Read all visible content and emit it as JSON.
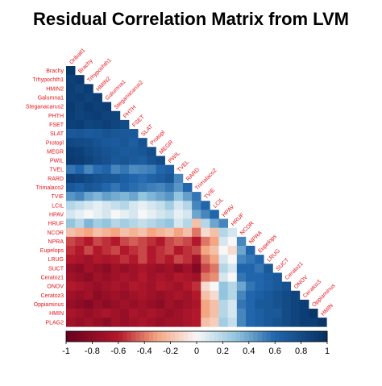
{
  "chart_data": {
    "type": "heatmap",
    "title": "Residual Correlation Matrix from LVM",
    "variables": [
      "Brachy",
      "Trhypochth1",
      "HMIN2",
      "Galumna1",
      "Steganacarus2",
      "PHTH",
      "FSET",
      "SLAT",
      "Protopl",
      "MEGR",
      "PWIL",
      "TVEL",
      "RARD",
      "Trimalaco2",
      "TVIE",
      "LCIL",
      "HPAV",
      "HRUF",
      "NCOR",
      "NPRA",
      "Eupelops",
      "LRUG",
      "SUCT",
      "Ceratoz1",
      "ONOV",
      "Ceratoz3",
      "Oppiaminus",
      "HMIN",
      "PLAG2"
    ],
    "column_labels": [
      "Oribatl1",
      "Brachy",
      "Trhypochth1",
      "HMIN2",
      "Galumna1",
      "Steganacarus2",
      "PHTH",
      "FSET",
      "SLAT",
      "Protopl",
      "MEGR",
      "PWIL",
      "TVEL",
      "RARD",
      "Trimalaco2",
      "TVIE",
      "LCIL",
      "HPAV",
      "HRUF",
      "NCOR",
      "NPRA",
      "Eupelops",
      "LRUG",
      "SUCT",
      "Ceratoz1",
      "ONOV",
      "Ceratoz3",
      "Oppiaminus",
      "HMIN"
    ],
    "lower_triangle_rows": [
      [
        0.95
      ],
      [
        0.88,
        0.92
      ],
      [
        0.9,
        0.85,
        0.9
      ],
      [
        0.88,
        0.9,
        0.86,
        0.9
      ],
      [
        0.92,
        0.87,
        0.92,
        0.88,
        0.9
      ],
      [
        0.9,
        0.86,
        0.88,
        0.9,
        0.86,
        0.85
      ],
      [
        0.88,
        0.9,
        0.84,
        0.86,
        0.88,
        0.84,
        0.8
      ],
      [
        0.7,
        0.72,
        0.68,
        0.7,
        0.74,
        0.72,
        0.7,
        0.7
      ],
      [
        0.82,
        0.8,
        0.78,
        0.74,
        0.7,
        0.68,
        0.72,
        0.66,
        0.75
      ],
      [
        0.9,
        0.88,
        0.82,
        0.78,
        0.74,
        0.72,
        0.68,
        0.7,
        0.72,
        0.78
      ],
      [
        0.92,
        0.9,
        0.86,
        0.8,
        0.76,
        0.7,
        0.72,
        0.68,
        0.66,
        0.74,
        0.8
      ],
      [
        0.55,
        0.6,
        0.5,
        0.58,
        0.62,
        0.5,
        0.55,
        0.48,
        0.5,
        0.52,
        0.6,
        0.65
      ],
      [
        0.88,
        0.85,
        0.8,
        0.75,
        0.72,
        0.7,
        0.65,
        0.6,
        0.58,
        0.62,
        0.66,
        0.72,
        0.5
      ],
      [
        0.7,
        0.65,
        0.72,
        0.68,
        0.6,
        0.55,
        0.62,
        0.58,
        0.55,
        0.52,
        0.5,
        0.55,
        0.45,
        0.6
      ],
      [
        0.45,
        0.5,
        0.4,
        0.35,
        0.42,
        0.38,
        0.35,
        0.4,
        0.3,
        0.35,
        0.4,
        0.45,
        0.3,
        0.42,
        0.55
      ],
      [
        0.2,
        0.15,
        0.1,
        0.05,
        0.1,
        0.15,
        0.2,
        0.1,
        0.05,
        0.1,
        0.15,
        0.25,
        0.1,
        0.2,
        0.5,
        0.6
      ],
      [
        0.1,
        0.05,
        0.0,
        0.05,
        0.1,
        0.0,
        0.05,
        0.1,
        0.0,
        0.05,
        0.1,
        0.15,
        0.05,
        0.1,
        0.4,
        0.5,
        0.6
      ],
      [
        0.3,
        0.2,
        0.35,
        0.25,
        0.3,
        0.2,
        0.25,
        0.2,
        0.15,
        0.2,
        0.25,
        0.3,
        0.1,
        0.2,
        -0.2,
        0.2,
        0.4,
        0.5
      ],
      [
        -0.2,
        -0.25,
        -0.3,
        -0.2,
        -0.25,
        -0.3,
        -0.2,
        -0.25,
        -0.2,
        -0.3,
        -0.25,
        -0.2,
        -0.3,
        -0.2,
        -0.4,
        -0.1,
        -0.2,
        0.2,
        0.1
      ],
      [
        -0.5,
        -0.55,
        -0.6,
        -0.5,
        -0.55,
        -0.6,
        -0.5,
        -0.45,
        -0.5,
        -0.55,
        -0.6,
        -0.5,
        -0.45,
        -0.5,
        -0.6,
        -0.4,
        -0.3,
        0.1,
        0.0,
        0.5
      ],
      [
        -0.55,
        -0.6,
        -0.5,
        -0.6,
        -0.55,
        -0.5,
        -0.6,
        -0.55,
        -0.5,
        -0.6,
        -0.55,
        -0.5,
        -0.6,
        -0.55,
        -0.5,
        -0.3,
        -0.2,
        0.0,
        -0.1,
        0.4,
        0.6
      ],
      [
        -0.6,
        -0.65,
        -0.7,
        -0.6,
        -0.65,
        -0.6,
        -0.55,
        -0.6,
        -0.5,
        -0.6,
        -0.55,
        -0.6,
        -0.5,
        -0.55,
        -0.7,
        -0.4,
        -0.3,
        0.1,
        0.0,
        0.5,
        0.55,
        0.6
      ],
      [
        -0.75,
        -0.8,
        -0.7,
        -0.75,
        -0.8,
        -0.7,
        -0.75,
        -0.7,
        -0.65,
        -0.7,
        -0.75,
        -0.7,
        -0.8,
        -0.7,
        -0.85,
        -0.5,
        -0.4,
        0.2,
        0.1,
        0.6,
        0.6,
        0.55,
        0.7
      ],
      [
        -0.7,
        -0.75,
        -0.8,
        -0.7,
        -0.75,
        -0.7,
        -0.65,
        -0.7,
        -0.6,
        -0.7,
        -0.65,
        -0.7,
        -0.6,
        -0.65,
        -0.7,
        -0.4,
        -0.35,
        0.1,
        0.0,
        0.55,
        0.6,
        0.6,
        0.65,
        0.7
      ],
      [
        -0.6,
        -0.65,
        -0.7,
        -0.75,
        -0.7,
        -0.65,
        -0.7,
        -0.6,
        -0.65,
        -0.7,
        -0.6,
        -0.65,
        -0.7,
        -0.6,
        -0.55,
        -0.1,
        0.0,
        0.3,
        0.2,
        0.4,
        0.55,
        0.6,
        0.65,
        0.7,
        0.75
      ],
      [
        -0.7,
        -0.75,
        -0.7,
        -0.8,
        -0.75,
        -0.7,
        -0.75,
        -0.7,
        -0.65,
        -0.7,
        -0.75,
        -0.7,
        -0.65,
        -0.7,
        -0.6,
        -0.2,
        -0.1,
        0.3,
        0.2,
        0.5,
        0.6,
        0.65,
        0.7,
        0.75,
        0.8,
        0.85
      ],
      [
        -0.75,
        -0.8,
        -0.85,
        -0.75,
        -0.8,
        -0.75,
        -0.7,
        -0.75,
        -0.7,
        -0.75,
        -0.8,
        -0.7,
        -0.75,
        -0.7,
        -0.65,
        -0.3,
        -0.2,
        0.2,
        0.1,
        0.55,
        0.6,
        0.7,
        0.7,
        0.75,
        0.8,
        0.85,
        0.9
      ],
      [
        -0.65,
        -0.7,
        -0.75,
        -0.7,
        -0.65,
        -0.7,
        -0.75,
        -0.65,
        -0.7,
        -0.65,
        -0.7,
        -0.75,
        -0.7,
        -0.65,
        -0.6,
        -0.3,
        -0.2,
        0.2,
        0.1,
        0.5,
        0.6,
        0.65,
        0.7,
        0.7,
        0.8,
        0.85,
        0.9,
        0.95
      ],
      [
        -0.7,
        -0.75,
        -0.7,
        -0.75,
        -0.8,
        -0.7,
        -0.75,
        -0.7,
        -0.65,
        -0.7,
        -0.75,
        -0.7,
        -0.7,
        -0.65,
        -0.6,
        -0.2,
        -0.15,
        0.25,
        0.15,
        0.5,
        0.6,
        0.65,
        0.7,
        0.75,
        0.8,
        0.85,
        0.9,
        0.9,
        0.95
      ]
    ],
    "colorbar": {
      "range": [
        -1,
        1
      ],
      "ticks": [
        "-1",
        "-0.8",
        "-0.6",
        "-0.4",
        "-0.2",
        "0",
        "0.2",
        "0.4",
        "0.6",
        "0.8",
        "1"
      ],
      "colors": {
        "negative": "#67001f",
        "neutral": "#f7f7f7",
        "positive": "#053061"
      }
    },
    "grid": false,
    "legend_placement": "bottom"
  }
}
